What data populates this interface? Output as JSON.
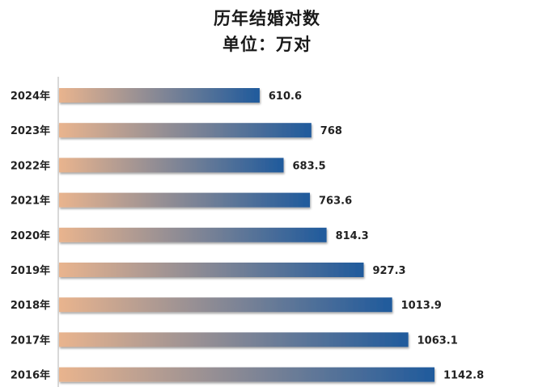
{
  "title": "历年结婚对数",
  "subtitle": "单位：万对",
  "colors": {
    "bar_start": "#E9B48E",
    "bar_end": "#1F5A9C",
    "axis": "#b0b0b0"
  },
  "chart_data": {
    "type": "bar",
    "orientation": "horizontal",
    "title": "历年结婚对数",
    "subtitle": "单位：万对",
    "xlabel": "",
    "ylabel": "",
    "categories": [
      "2024年",
      "2023年",
      "2022年",
      "2021年",
      "2020年",
      "2019年",
      "2018年",
      "2017年",
      "2016年"
    ],
    "values": [
      610.6,
      768,
      683.5,
      763.6,
      814.3,
      927.3,
      1013.9,
      1063.1,
      1142.8
    ],
    "value_labels": [
      "610.6",
      "768",
      "683.5",
      "763.6",
      "814.3",
      "927.3",
      "1013.9",
      "1063.1",
      "1142.8"
    ],
    "grid": false,
    "legend": "none"
  }
}
